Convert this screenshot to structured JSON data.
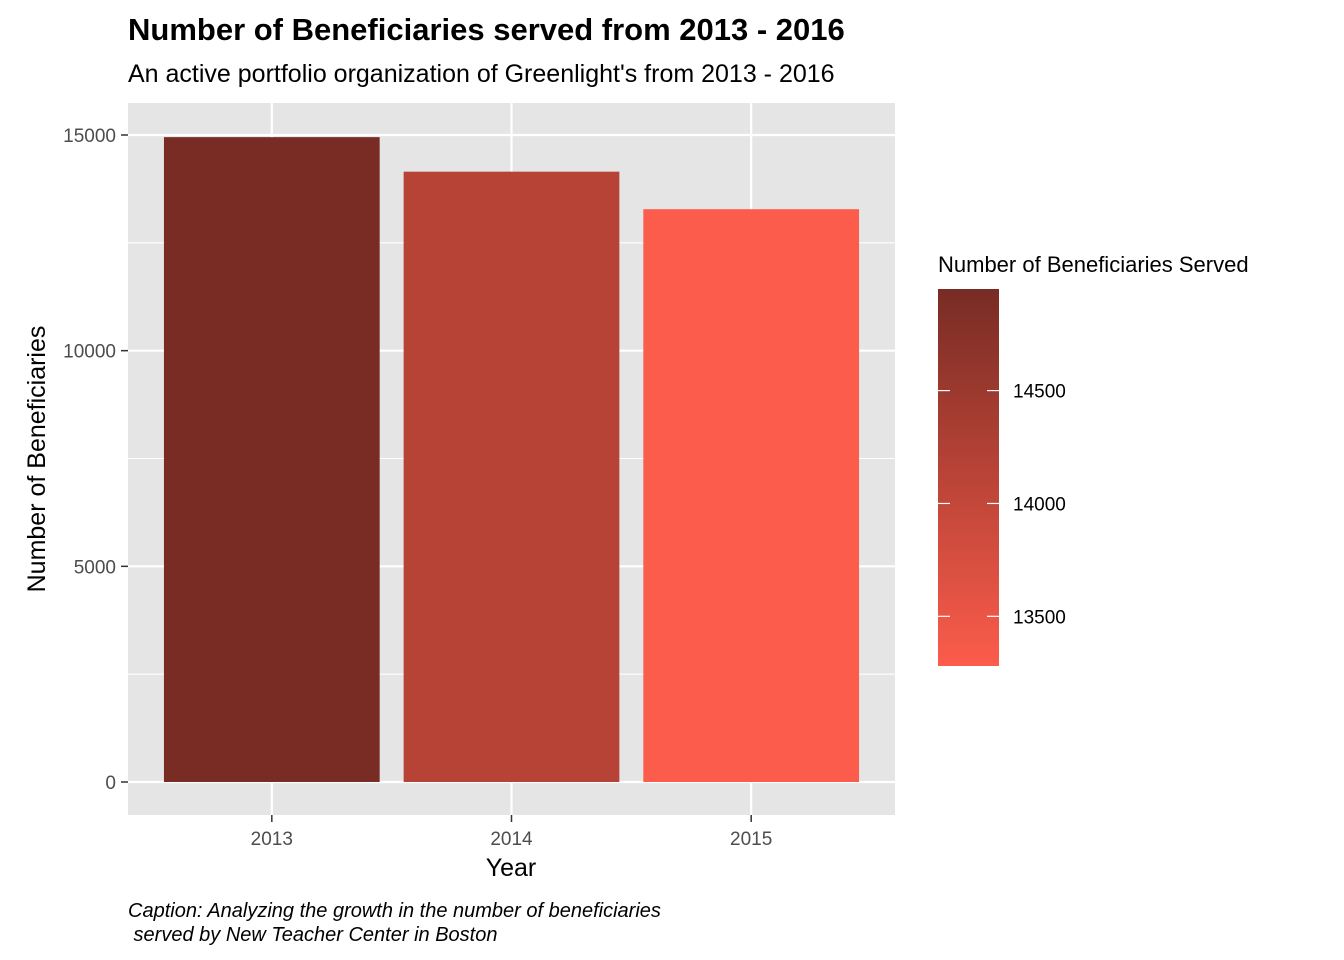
{
  "chart_data": {
    "type": "bar",
    "title": "Number of Beneficiaries served from 2013 - 2016",
    "subtitle": "An active portfolio organization of Greenlight's from 2013 - 2016",
    "xlabel": "Year",
    "ylabel": "Number of Beneficiaries",
    "categories": [
      "2013",
      "2014",
      "2015"
    ],
    "values": [
      14950,
      14150,
      13280
    ],
    "ylim": [
      0,
      15500
    ],
    "y_ticks": [
      0,
      5000,
      10000,
      15000
    ],
    "grid": true,
    "legend": {
      "title": "Number of Beneficiaries Served",
      "placement": "right",
      "type": "continuous-color",
      "ticks": [
        13500,
        14000,
        14500
      ],
      "range": [
        13280,
        14950
      ],
      "color_low": "#FC5C4B",
      "color_high": "#782C24"
    },
    "caption_lines": [
      "Caption: Analyzing the growth in the number of beneficiaries",
      " served by New Teacher Center in Boston"
    ],
    "colors": {
      "panel_background": "#E5E5E5",
      "grid": "#FFFFFF"
    }
  }
}
